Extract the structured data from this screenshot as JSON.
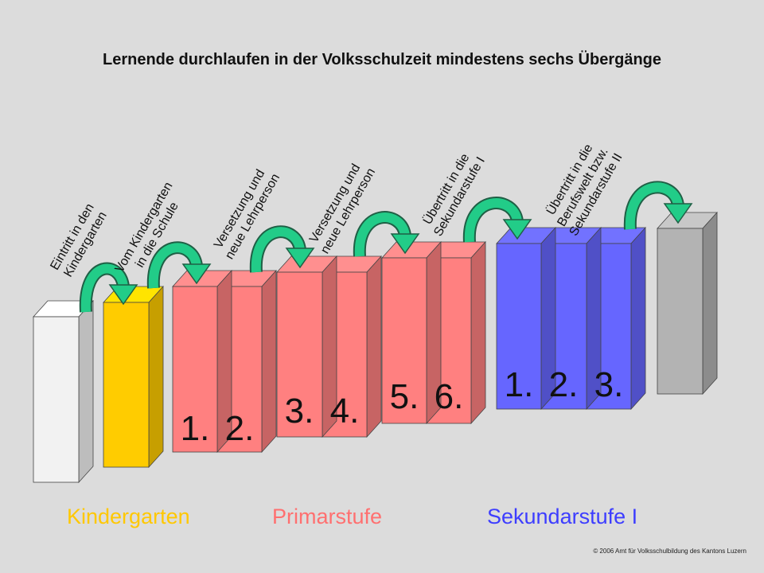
{
  "title": "Lernende durchlaufen in der Volksschulzeit mindestens sechs Übergänge",
  "transitions": [
    {
      "lines": [
        "Eintritt in den",
        "Kindergarten"
      ]
    },
    {
      "lines": [
        "Vom Kindergarten",
        "in die Schule"
      ]
    },
    {
      "lines": [
        "Versetzung und",
        "neue Lehrperson"
      ]
    },
    {
      "lines": [
        "Versetzung und",
        "neue Lehrperson"
      ]
    },
    {
      "lines": [
        "Übertritt in die",
        "Sekundarstufe I"
      ]
    },
    {
      "lines": [
        "Übertritt in die",
        "Berufswelt bzw.",
        "Sekundarstufe II"
      ]
    }
  ],
  "grades": {
    "primary": [
      "1.",
      "2.",
      "3.",
      "4.",
      "5.",
      "6."
    ],
    "secondary": [
      "1.",
      "2.",
      "3."
    ]
  },
  "stages": {
    "kindergarten": "Kindergarten",
    "primary": "Primarstufe",
    "secondary": "Sekundarstufe I"
  },
  "colors": {
    "background": "#dcdcdc",
    "kindergarten": "#ffcc00",
    "primary": "#ff8080",
    "secondary": "#6666ff",
    "before": "#f2f2f2",
    "after": "#b3b3b3",
    "arrow": "#22cc88"
  },
  "copyright": "© 2006 Amt für Volksschulbildung des Kantons Luzern"
}
